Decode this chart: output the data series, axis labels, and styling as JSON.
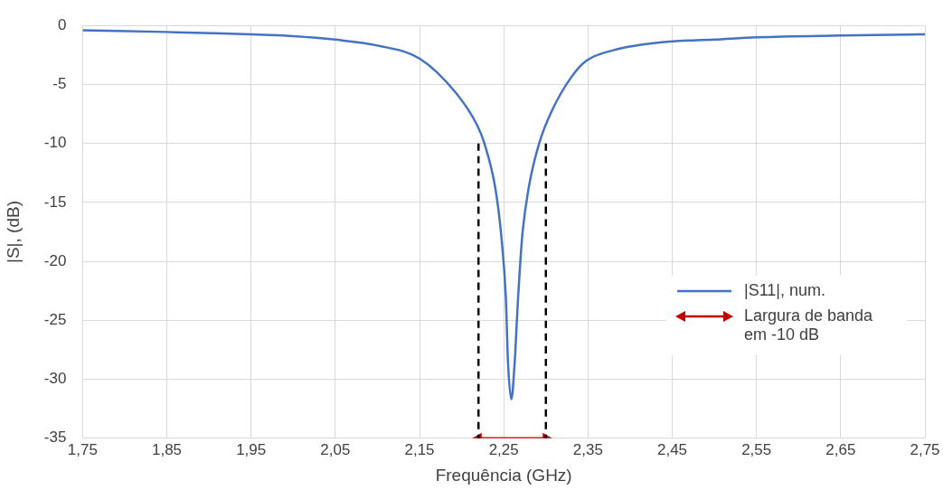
{
  "chart_data": {
    "type": "line",
    "xlabel": "Frequência (GHz)",
    "ylabel": "|S|, (dB)",
    "xlim": [
      1.75,
      2.75
    ],
    "xticks": [
      {
        "value": 1.75,
        "label": "1,75"
      },
      {
        "value": 1.85,
        "label": "1,85"
      },
      {
        "value": 1.95,
        "label": "1,95"
      },
      {
        "value": 2.05,
        "label": "2,05"
      },
      {
        "value": 2.15,
        "label": "2,15"
      },
      {
        "value": 2.25,
        "label": "2,25"
      },
      {
        "value": 2.35,
        "label": "2,35"
      },
      {
        "value": 2.45,
        "label": "2,45"
      },
      {
        "value": 2.55,
        "label": "2,55"
      },
      {
        "value": 2.65,
        "label": "2,65"
      },
      {
        "value": 2.75,
        "label": "2,75"
      }
    ],
    "ylim": [
      -35,
      0
    ],
    "yticks": [
      -35,
      -30,
      -25,
      -20,
      -15,
      -10,
      -5,
      0
    ],
    "grid": true,
    "legend": "right",
    "series": [
      {
        "name": "|S11|, num.",
        "color": "#4472c4",
        "marker": "none",
        "line_style": "solid",
        "x": [
          1.75,
          1.85,
          1.95,
          2.0,
          2.05,
          2.1,
          2.15,
          2.193,
          2.218,
          2.227,
          2.24,
          2.247,
          2.2525,
          2.255,
          2.259,
          2.263,
          2.267,
          2.272,
          2.2795,
          2.292,
          2.308,
          2.33,
          2.348,
          2.38,
          2.441,
          2.5,
          2.55,
          2.65,
          2.75
        ],
        "values": [
          -0.4,
          -0.55,
          -0.75,
          -0.9,
          -1.2,
          -1.7,
          -2.8,
          -5.7,
          -8.4,
          -10,
          -13.8,
          -17.8,
          -23.1,
          -28.5,
          -31.7,
          -28.5,
          -23.1,
          -17.8,
          -13.8,
          -10,
          -7.1,
          -4.4,
          -3,
          -2.1,
          -1.4,
          -1.2,
          -1,
          -0.85,
          -0.75
        ]
      },
      {
        "name": "Largura de banda em -10 dB",
        "color": "#c00000",
        "marker": "triangle",
        "line_style": "solid",
        "x": [
          2.22,
          2.3
        ],
        "values": [
          -35,
          -35
        ]
      },
      {
        "color": "#000000",
        "marker": "none",
        "line_style": "dashed",
        "x": [
          2.22,
          2.22
        ],
        "values": [
          -10,
          -35
        ]
      },
      {
        "color": "#000000",
        "marker": "none",
        "line_style": "dashed",
        "x": [
          2.3,
          2.3
        ],
        "values": [
          -10,
          -35
        ]
      }
    ]
  }
}
